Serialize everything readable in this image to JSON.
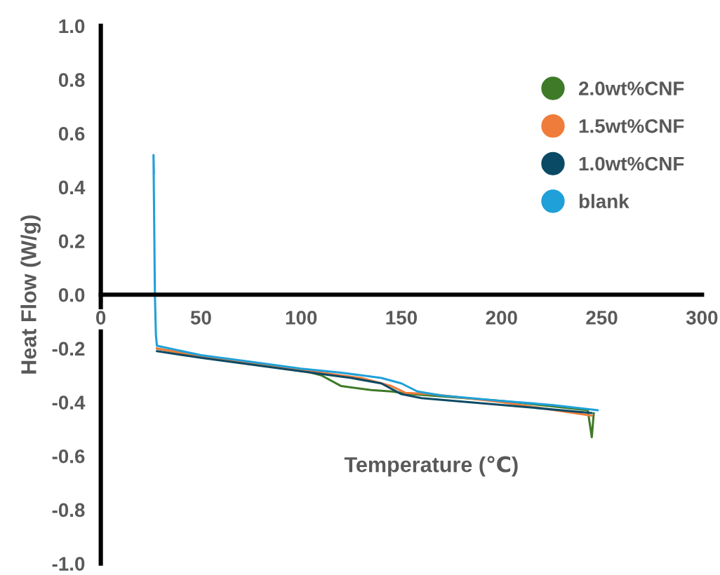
{
  "chart_data": {
    "type": "line",
    "xlabel": "Temperature (℃)",
    "ylabel": "Heat Flow (W/g)",
    "xlim": [
      0,
      300
    ],
    "ylim": [
      -1.0,
      1.0
    ],
    "xticks": [
      0,
      50,
      100,
      150,
      200,
      250,
      300
    ],
    "yticks": [
      {
        "value": -1.0,
        "label": "-1.0"
      },
      {
        "value": -0.8,
        "label": "-0.8"
      },
      {
        "value": -0.6,
        "label": "-0.6"
      },
      {
        "value": -0.4,
        "label": "-0.4"
      },
      {
        "value": -0.2,
        "label": "-0.2"
      },
      {
        "value": 0.0,
        "label": "0.0"
      },
      {
        "value": 0.2,
        "label": "0.2"
      },
      {
        "value": 0.4,
        "label": "0.4"
      },
      {
        "value": 0.6,
        "label": "0.6"
      },
      {
        "value": 0.8,
        "label": "0.8"
      },
      {
        "value": 1.0,
        "label": "1.0"
      }
    ],
    "grid": false,
    "legend": "top right",
    "marker": "none",
    "line_style": "solid",
    "series": [
      {
        "name": "2.0wt%CNF",
        "color": "#3e7a28",
        "x": [
          28,
          50,
          100,
          110,
          120,
          135,
          145,
          155,
          200,
          243,
          245,
          246
        ],
        "values": [
          -0.2,
          -0.23,
          -0.28,
          -0.3,
          -0.34,
          -0.355,
          -0.36,
          -0.37,
          -0.395,
          -0.43,
          -0.53,
          -0.44
        ]
      },
      {
        "name": "1.5wt%CNF",
        "color": "#ef7c3a",
        "x": [
          28,
          50,
          100,
          130,
          145,
          152,
          165,
          200,
          245
        ],
        "values": [
          -0.2,
          -0.23,
          -0.28,
          -0.31,
          -0.34,
          -0.365,
          -0.37,
          -0.4,
          -0.45
        ]
      },
      {
        "name": "1.0wt%CNF",
        "color": "#0b4a64",
        "x": [
          28,
          50,
          100,
          125,
          140,
          150,
          160,
          200,
          245
        ],
        "values": [
          -0.21,
          -0.235,
          -0.285,
          -0.31,
          -0.33,
          -0.37,
          -0.385,
          -0.41,
          -0.44
        ]
      },
      {
        "name": "blank",
        "color": "#1fa0d8",
        "x": [
          26.5,
          26.3,
          26.6,
          27.0,
          27.5,
          28,
          50,
          75,
          100,
          120,
          140,
          150,
          158,
          170,
          200,
          225,
          248
        ],
        "values": [
          0.45,
          0.52,
          0.3,
          0.0,
          -0.15,
          -0.19,
          -0.225,
          -0.25,
          -0.275,
          -0.29,
          -0.31,
          -0.33,
          -0.36,
          -0.375,
          -0.395,
          -0.41,
          -0.43
        ]
      }
    ]
  }
}
